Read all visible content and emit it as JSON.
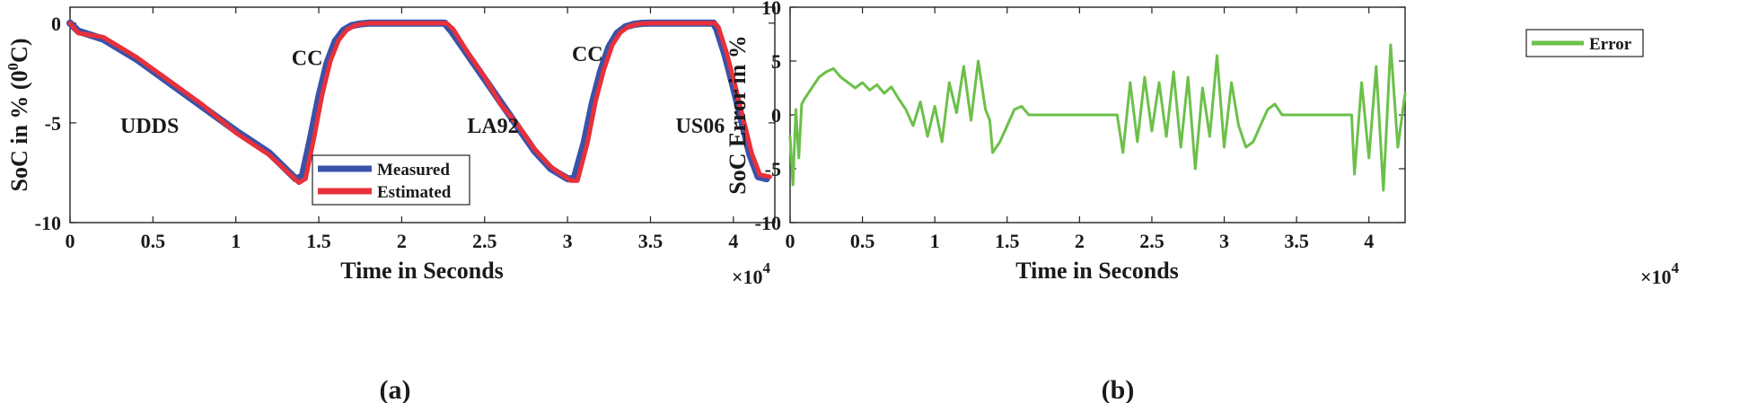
{
  "chart_data": [
    {
      "type": "line",
      "panel_label": "(a)",
      "xlabel": "Time in Seconds",
      "ylabel": "SoC in % (0",
      "ylabel_superscript": "0",
      "ylabel_unit": "C)",
      "x_multiplier": "×10",
      "x_multiplier_exp": "4",
      "xlim": [
        0,
        4.25
      ],
      "ylim": [
        -10,
        0.8
      ],
      "x_ticks": [
        0,
        0.5,
        1,
        1.5,
        2,
        2.5,
        3,
        3.5,
        4
      ],
      "x_tick_labels": [
        "0",
        "0.5",
        "1",
        "1.5",
        "2",
        "2.5",
        "3",
        "3.5",
        "4"
      ],
      "y_ticks": [
        0,
        -5,
        -10
      ],
      "y_tick_labels": [
        "0",
        "-5",
        "-10"
      ],
      "annotations": [
        {
          "text": "UDDS",
          "x": 0.48,
          "y": -5.5
        },
        {
          "text": "CC",
          "x": 1.43,
          "y": -2.1
        },
        {
          "text": "LA92",
          "x": 2.55,
          "y": -5.5
        },
        {
          "text": "CC",
          "x": 3.12,
          "y": -1.9
        },
        {
          "text": "US06",
          "x": 3.8,
          "y": -5.5
        }
      ],
      "legend": {
        "placement": "bottom-right-center",
        "entries": [
          "Measured",
          "Estimated"
        ]
      },
      "series": [
        {
          "name": "Measured",
          "color": "#3a52a8",
          "x": [
            0,
            0.05,
            0.2,
            0.4,
            0.6,
            0.8,
            1.0,
            1.2,
            1.36,
            1.4,
            1.45,
            1.5,
            1.55,
            1.6,
            1.65,
            1.7,
            1.75,
            1.8,
            1.9,
            2.0,
            2.1,
            2.2,
            2.26,
            2.3,
            2.4,
            2.5,
            2.6,
            2.7,
            2.8,
            2.9,
            3.0,
            3.04,
            3.1,
            3.15,
            3.2,
            3.25,
            3.3,
            3.35,
            3.4,
            3.45,
            3.5,
            3.6,
            3.7,
            3.8,
            3.88,
            3.9,
            3.95,
            4.0,
            4.05,
            4.1,
            4.15,
            4.2
          ],
          "y": [
            0,
            -0.4,
            -0.8,
            -1.8,
            -3.0,
            -4.2,
            -5.4,
            -6.5,
            -7.8,
            -7.7,
            -5.8,
            -3.7,
            -2.0,
            -0.9,
            -0.35,
            -0.12,
            -0.04,
            0,
            0,
            0,
            0,
            0,
            0,
            -0.4,
            -1.6,
            -2.8,
            -4.0,
            -5.2,
            -6.4,
            -7.3,
            -7.8,
            -7.8,
            -6.0,
            -4.0,
            -2.4,
            -1.2,
            -0.5,
            -0.18,
            -0.06,
            -0.01,
            0,
            0,
            0,
            0,
            0,
            -0.3,
            -1.6,
            -3.2,
            -4.9,
            -6.6,
            -7.7,
            -7.8
          ]
        },
        {
          "name": "Estimated",
          "color": "#e8303a",
          "x": [
            0,
            0.05,
            0.2,
            0.4,
            0.6,
            0.8,
            1.0,
            1.2,
            1.38,
            1.42,
            1.47,
            1.52,
            1.57,
            1.62,
            1.67,
            1.72,
            1.77,
            1.82,
            1.9,
            2.0,
            2.1,
            2.2,
            2.27,
            2.31,
            2.4,
            2.5,
            2.6,
            2.7,
            2.8,
            2.9,
            3.02,
            3.06,
            3.12,
            3.17,
            3.22,
            3.27,
            3.32,
            3.37,
            3.42,
            3.47,
            3.52,
            3.6,
            3.7,
            3.8,
            3.89,
            3.91,
            3.96,
            4.01,
            4.06,
            4.11,
            4.16,
            4.22
          ],
          "y": [
            0,
            -0.5,
            -0.7,
            -1.7,
            -2.9,
            -4.1,
            -5.5,
            -6.6,
            -8.0,
            -7.8,
            -5.8,
            -3.6,
            -1.9,
            -0.85,
            -0.33,
            -0.11,
            -0.03,
            0,
            0,
            0,
            0,
            0,
            0,
            -0.3,
            -1.5,
            -2.7,
            -4.1,
            -5.1,
            -6.3,
            -7.2,
            -7.9,
            -7.9,
            -6.0,
            -3.9,
            -2.3,
            -1.1,
            -0.45,
            -0.16,
            -0.05,
            -0.01,
            0,
            0,
            0,
            0,
            0,
            -0.2,
            -1.5,
            -3.1,
            -4.8,
            -6.5,
            -7.6,
            -7.7
          ]
        }
      ]
    },
    {
      "type": "line",
      "panel_label": "(b)",
      "xlabel": "Time in Seconds",
      "ylabel": "SoC Error in %",
      "x_multiplier": "×10",
      "x_multiplier_exp": "4",
      "xlim": [
        0,
        4.25
      ],
      "ylim": [
        -10,
        10
      ],
      "x_ticks": [
        0,
        0.5,
        1,
        1.5,
        2,
        2.5,
        3,
        3.5,
        4
      ],
      "x_tick_labels": [
        "0",
        "0.5",
        "1",
        "1.5",
        "2",
        "2.5",
        "3",
        "3.5",
        "4"
      ],
      "y_ticks": [
        10,
        5,
        0,
        -5,
        -10
      ],
      "y_tick_labels": [
        "10",
        "5",
        "0",
        "-5",
        "-10"
      ],
      "legend": {
        "placement": "top-right",
        "entries": [
          "Error"
        ]
      },
      "series": [
        {
          "name": "Error",
          "color": "#6cc04a",
          "x": [
            0,
            0.02,
            0.04,
            0.06,
            0.08,
            0.1,
            0.15,
            0.2,
            0.25,
            0.3,
            0.35,
            0.4,
            0.45,
            0.5,
            0.55,
            0.6,
            0.65,
            0.7,
            0.75,
            0.8,
            0.85,
            0.9,
            0.95,
            1.0,
            1.05,
            1.1,
            1.15,
            1.2,
            1.25,
            1.3,
            1.35,
            1.38,
            1.4,
            1.45,
            1.5,
            1.55,
            1.6,
            1.65,
            1.7,
            1.75,
            1.8,
            1.9,
            2.0,
            2.1,
            2.2,
            2.26,
            2.3,
            2.35,
            2.4,
            2.45,
            2.5,
            2.55,
            2.6,
            2.65,
            2.7,
            2.75,
            2.8,
            2.85,
            2.9,
            2.95,
            3.0,
            3.05,
            3.1,
            3.15,
            3.2,
            3.25,
            3.3,
            3.35,
            3.4,
            3.5,
            3.6,
            3.7,
            3.8,
            3.88,
            3.9,
            3.95,
            4.0,
            4.05,
            4.1,
            4.15,
            4.2,
            4.25
          ],
          "y": [
            -2.0,
            -6.5,
            0.5,
            -4.0,
            1.0,
            1.5,
            2.5,
            3.5,
            4.0,
            4.3,
            3.5,
            3.0,
            2.5,
            3.0,
            2.3,
            2.8,
            2.0,
            2.6,
            1.5,
            0.5,
            -1.0,
            1.2,
            -2.0,
            0.8,
            -2.5,
            3.0,
            0.2,
            4.5,
            -0.5,
            5.0,
            0.5,
            -0.5,
            -3.5,
            -2.5,
            -1.0,
            0.5,
            0.8,
            0.0,
            0.0,
            0.0,
            0.0,
            0.0,
            0.0,
            0.0,
            0.0,
            0.0,
            -3.5,
            3.0,
            -2.5,
            3.5,
            -1.5,
            3.0,
            -2.0,
            4.0,
            -3.0,
            3.5,
            -5.0,
            2.5,
            -2.0,
            5.5,
            -3.0,
            3.0,
            -1.0,
            -3.0,
            -2.5,
            -1.0,
            0.5,
            1.0,
            0.0,
            0.0,
            0.0,
            0.0,
            0.0,
            0.0,
            -5.5,
            3.0,
            -4.0,
            4.5,
            -7.0,
            6.5,
            -3.0,
            2.0
          ]
        }
      ]
    }
  ]
}
